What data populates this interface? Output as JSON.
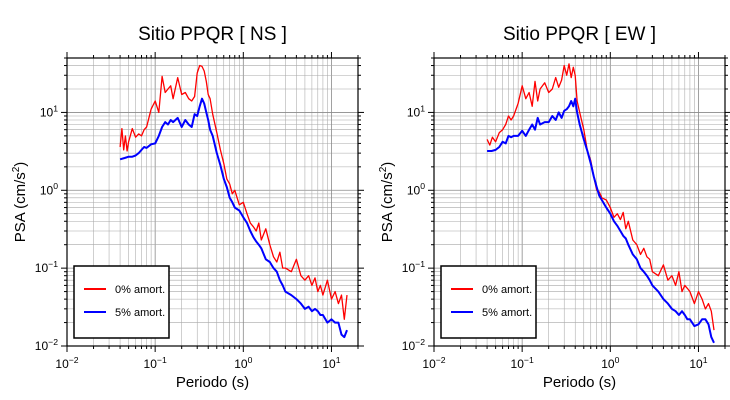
{
  "chart_data": [
    {
      "type": "line",
      "title": "Sitio PPQR [ NS ]",
      "xlabel": "Periodo (s)",
      "ylabel_main": "PSA (cm/s",
      "ylabel_sup": "2",
      "ylabel_tail": ")",
      "xscale": "log",
      "yscale": "log",
      "xlim": [
        0.01,
        20
      ],
      "ylim": [
        0.01,
        50
      ],
      "grid": true,
      "legend_position": "bottom-left",
      "x_ticks": [
        {
          "base": "10",
          "exp": "−2"
        },
        {
          "base": "10",
          "exp": "−1"
        },
        {
          "base": "10",
          "exp": "0"
        },
        {
          "base": "10",
          "exp": "1"
        }
      ],
      "y_ticks": [
        {
          "base": "10",
          "exp": "−2"
        },
        {
          "base": "10",
          "exp": "−1"
        },
        {
          "base": "10",
          "exp": "0"
        },
        {
          "base": "10",
          "exp": "1"
        }
      ],
      "series": [
        {
          "name": "0% amort.",
          "color": "#ff0000",
          "stroke": 1.3,
          "x": [
            0.04,
            0.042,
            0.044,
            0.046,
            0.048,
            0.05,
            0.055,
            0.06,
            0.065,
            0.07,
            0.075,
            0.08,
            0.09,
            0.1,
            0.11,
            0.12,
            0.13,
            0.14,
            0.15,
            0.16,
            0.18,
            0.2,
            0.22,
            0.24,
            0.26,
            0.28,
            0.3,
            0.32,
            0.34,
            0.36,
            0.38,
            0.4,
            0.42,
            0.45,
            0.5,
            0.55,
            0.6,
            0.65,
            0.7,
            0.75,
            0.8,
            0.9,
            1.0,
            1.1,
            1.2,
            1.3,
            1.4,
            1.5,
            1.6,
            1.8,
            2.0,
            2.2,
            2.4,
            2.6,
            2.8,
            3.0,
            3.5,
            4.0,
            4.5,
            5.0,
            5.5,
            6.0,
            6.5,
            7.0,
            7.5,
            8.0,
            9.0,
            10.0,
            11.0,
            12.0,
            13.0,
            14.0,
            15.0
          ],
          "y": [
            3.6,
            6.2,
            3.3,
            5.0,
            3.2,
            4.2,
            6.2,
            4.8,
            5.3,
            5.0,
            6.0,
            6.5,
            11.0,
            14.0,
            10.0,
            29.0,
            18.0,
            20.0,
            22.0,
            15.0,
            28.0,
            17.0,
            18.0,
            15.0,
            14.0,
            16.0,
            32.0,
            40.0,
            39.0,
            34.0,
            25.0,
            17.0,
            15.0,
            9.5,
            5.5,
            3.3,
            2.2,
            1.4,
            1.2,
            0.9,
            1.0,
            0.65,
            0.7,
            0.5,
            0.38,
            0.34,
            0.3,
            0.38,
            0.23,
            0.32,
            0.2,
            0.14,
            0.12,
            0.16,
            0.1,
            0.1,
            0.09,
            0.13,
            0.08,
            0.07,
            0.08,
            0.06,
            0.075,
            0.05,
            0.06,
            0.045,
            0.07,
            0.04,
            0.05,
            0.035,
            0.045,
            0.022,
            0.045
          ]
        },
        {
          "name": "5% amort.",
          "color": "#0000ff",
          "stroke": 2.0,
          "x": [
            0.04,
            0.045,
            0.05,
            0.055,
            0.06,
            0.065,
            0.07,
            0.075,
            0.08,
            0.09,
            0.1,
            0.11,
            0.12,
            0.13,
            0.14,
            0.15,
            0.16,
            0.18,
            0.2,
            0.22,
            0.24,
            0.26,
            0.28,
            0.3,
            0.32,
            0.34,
            0.36,
            0.38,
            0.4,
            0.42,
            0.45,
            0.5,
            0.55,
            0.6,
            0.65,
            0.7,
            0.75,
            0.8,
            0.9,
            1.0,
            1.1,
            1.2,
            1.3,
            1.4,
            1.5,
            1.6,
            1.8,
            2.0,
            2.2,
            2.4,
            2.6,
            2.8,
            3.0,
            3.5,
            4.0,
            4.5,
            5.0,
            5.5,
            6.0,
            6.5,
            7.0,
            7.5,
            8.0,
            9.0,
            10.0,
            11.0,
            12.0,
            13.0,
            14.0,
            15.0
          ],
          "y": [
            2.5,
            2.6,
            2.7,
            2.7,
            2.8,
            3.0,
            3.3,
            3.6,
            3.5,
            3.9,
            4.0,
            5.0,
            6.5,
            7.5,
            7.0,
            8.0,
            7.5,
            8.5,
            6.5,
            8.0,
            7.0,
            6.5,
            9.5,
            9.0,
            12.0,
            15.0,
            13.0,
            10.0,
            8.0,
            6.0,
            5.0,
            3.0,
            2.1,
            1.4,
            1.1,
            0.8,
            0.7,
            0.6,
            0.55,
            0.45,
            0.38,
            0.3,
            0.25,
            0.22,
            0.2,
            0.18,
            0.13,
            0.12,
            0.1,
            0.09,
            0.07,
            0.06,
            0.05,
            0.045,
            0.04,
            0.035,
            0.03,
            0.032,
            0.028,
            0.03,
            0.028,
            0.025,
            0.025,
            0.02,
            0.022,
            0.02,
            0.02,
            0.014,
            0.013,
            0.016
          ]
        }
      ]
    },
    {
      "type": "line",
      "title": "Sitio PPQR [ EW ]",
      "xlabel": "Periodo (s)",
      "ylabel_main": "PSA (cm/s",
      "ylabel_sup": "2",
      "ylabel_tail": ")",
      "xscale": "log",
      "yscale": "log",
      "xlim": [
        0.01,
        20
      ],
      "ylim": [
        0.01,
        50
      ],
      "grid": true,
      "legend_position": "bottom-left",
      "x_ticks": [
        {
          "base": "10",
          "exp": "−2"
        },
        {
          "base": "10",
          "exp": "−1"
        },
        {
          "base": "10",
          "exp": "0"
        },
        {
          "base": "10",
          "exp": "1"
        }
      ],
      "y_ticks": [
        {
          "base": "10",
          "exp": "−2"
        },
        {
          "base": "10",
          "exp": "−1"
        },
        {
          "base": "10",
          "exp": "0"
        },
        {
          "base": "10",
          "exp": "1"
        }
      ],
      "series": [
        {
          "name": "0% amort.",
          "color": "#ff0000",
          "stroke": 1.3,
          "x": [
            0.04,
            0.043,
            0.046,
            0.05,
            0.055,
            0.06,
            0.065,
            0.07,
            0.075,
            0.08,
            0.09,
            0.1,
            0.11,
            0.12,
            0.13,
            0.14,
            0.15,
            0.16,
            0.18,
            0.2,
            0.22,
            0.24,
            0.26,
            0.28,
            0.3,
            0.32,
            0.34,
            0.36,
            0.38,
            0.4,
            0.42,
            0.45,
            0.5,
            0.55,
            0.6,
            0.65,
            0.7,
            0.75,
            0.8,
            0.9,
            1.0,
            1.1,
            1.2,
            1.3,
            1.4,
            1.5,
            1.6,
            1.8,
            2.0,
            2.2,
            2.4,
            2.6,
            2.8,
            3.0,
            3.5,
            4.0,
            4.5,
            5.0,
            5.5,
            6.0,
            6.5,
            7.0,
            7.5,
            8.0,
            9.0,
            10.0,
            11.0,
            12.0,
            13.0,
            14.0,
            15.0
          ],
          "y": [
            4.5,
            3.8,
            4.8,
            4.2,
            5.5,
            6.0,
            7.0,
            9.0,
            8.0,
            9.0,
            13.0,
            22.0,
            15.0,
            18.0,
            12.0,
            25.0,
            14.0,
            20.0,
            24.0,
            18.0,
            20.0,
            28.0,
            21.0,
            26.0,
            40.0,
            30.0,
            42.0,
            28.0,
            38.0,
            30.0,
            14.0,
            10.0,
            6.0,
            3.2,
            2.4,
            1.5,
            1.0,
            0.95,
            0.8,
            0.75,
            0.6,
            0.45,
            0.5,
            0.42,
            0.52,
            0.32,
            0.4,
            0.23,
            0.2,
            0.15,
            0.18,
            0.14,
            0.13,
            0.09,
            0.08,
            0.11,
            0.07,
            0.08,
            0.06,
            0.09,
            0.05,
            0.06,
            0.055,
            0.05,
            0.035,
            0.05,
            0.04,
            0.03,
            0.035,
            0.028,
            0.016
          ]
        },
        {
          "name": "5% amort.",
          "color": "#0000ff",
          "stroke": 2.0,
          "x": [
            0.04,
            0.045,
            0.05,
            0.055,
            0.06,
            0.065,
            0.07,
            0.075,
            0.08,
            0.09,
            0.1,
            0.11,
            0.12,
            0.13,
            0.14,
            0.15,
            0.16,
            0.18,
            0.2,
            0.22,
            0.24,
            0.26,
            0.28,
            0.3,
            0.32,
            0.34,
            0.36,
            0.38,
            0.4,
            0.42,
            0.45,
            0.5,
            0.55,
            0.6,
            0.65,
            0.7,
            0.75,
            0.8,
            0.9,
            1.0,
            1.1,
            1.2,
            1.3,
            1.4,
            1.5,
            1.6,
            1.8,
            2.0,
            2.2,
            2.4,
            2.6,
            2.8,
            3.0,
            3.5,
            4.0,
            4.5,
            5.0,
            5.5,
            6.0,
            6.5,
            7.0,
            7.5,
            8.0,
            9.0,
            10.0,
            11.0,
            12.0,
            13.0,
            14.0,
            15.0
          ],
          "y": [
            3.2,
            3.2,
            3.3,
            3.6,
            4.2,
            4.0,
            5.0,
            4.8,
            5.0,
            5.0,
            5.8,
            5.0,
            6.0,
            7.0,
            6.0,
            8.5,
            7.0,
            7.5,
            7.5,
            9.0,
            8.0,
            10.0,
            8.5,
            10.5,
            11.0,
            12.0,
            14.0,
            12.0,
            15.0,
            10.0,
            7.0,
            4.5,
            3.2,
            2.2,
            1.5,
            1.1,
            0.85,
            0.75,
            0.6,
            0.5,
            0.4,
            0.35,
            0.3,
            0.26,
            0.24,
            0.2,
            0.15,
            0.13,
            0.1,
            0.09,
            0.08,
            0.07,
            0.06,
            0.05,
            0.04,
            0.035,
            0.03,
            0.028,
            0.025,
            0.028,
            0.025,
            0.022,
            0.022,
            0.018,
            0.019,
            0.022,
            0.022,
            0.019,
            0.013,
            0.011
          ]
        }
      ]
    }
  ]
}
